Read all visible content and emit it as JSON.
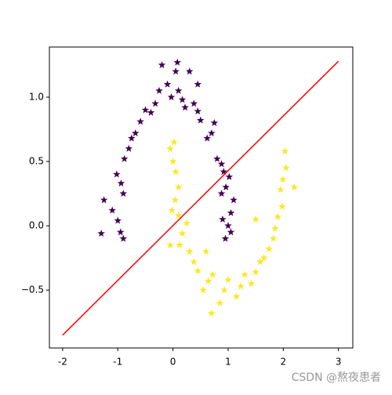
{
  "chart_data": {
    "type": "scatter",
    "xlim": [
      -2.24,
      3.26
    ],
    "ylim": [
      -0.95,
      1.39
    ],
    "xticks": [
      -2,
      -1,
      0,
      1,
      2,
      3
    ],
    "yticks": [
      {
        "value": -0.5,
        "label": "−0.5"
      },
      {
        "value": 0,
        "label": "0.0"
      },
      {
        "value": 0.5,
        "label": "0.5"
      },
      {
        "value": 1,
        "label": "1.0"
      }
    ],
    "series": [
      {
        "color": "#440154",
        "marker": "star",
        "x": [
          1.0,
          0.95,
          1.05,
          0.9,
          0.96,
          0.88,
          1.02,
          0.88,
          0.8,
          0.92,
          0.7,
          0.62,
          0.75,
          0.45,
          0.38,
          0.5,
          0.17,
          0.1,
          0.22,
          -0.03,
          0.05,
          -0.1,
          0.08,
          -0.32,
          -0.25,
          -0.4,
          -0.59,
          -0.5,
          -0.68,
          -0.8,
          -0.88,
          -0.75,
          -0.94,
          -1.02,
          -0.9,
          -1.0,
          -1.1,
          -0.95,
          -1.3,
          -1.25,
          -0.9,
          0.3,
          -0.2,
          0.45,
          1.1,
          1.05
        ],
        "y": [
          0.0,
          -0.1,
          0.1,
          0.05,
          0.3,
          0.25,
          0.38,
          0.48,
          0.52,
          0.42,
          0.72,
          0.68,
          0.8,
          0.89,
          0.95,
          0.82,
          0.98,
          1.05,
          0.92,
          1.0,
          1.2,
          1.1,
          1.27,
          0.95,
          1.05,
          0.88,
          0.81,
          0.9,
          0.72,
          0.6,
          0.52,
          0.68,
          0.33,
          0.4,
          0.25,
          0.04,
          0.12,
          -0.05,
          -0.06,
          0.2,
          -0.1,
          1.2,
          1.25,
          1.1,
          0.2,
          -0.05
        ]
      },
      {
        "color": "#fde725",
        "marker": "star",
        "x": [
          0,
          -0.05,
          0.05,
          0.02,
          0.04,
          0.1,
          -0.02,
          0.17,
          0.25,
          0.12,
          0.38,
          0.3,
          0.45,
          0.64,
          0.55,
          0.72,
          0.93,
          0.85,
          1.0,
          0.7,
          1.23,
          1.15,
          1.3,
          1.5,
          1.42,
          1.58,
          1.74,
          1.65,
          1.82,
          1.9,
          1.85,
          1.98,
          1.99,
          2.05,
          1.95,
          2.03,
          2.2,
          -0.05,
          0.6,
          1.5,
          0.1
        ],
        "y": [
          0.5,
          0.6,
          0.42,
          0.65,
          0.2,
          0.3,
          0.12,
          -0.06,
          0.02,
          -0.15,
          -0.28,
          -0.2,
          -0.35,
          -0.43,
          -0.5,
          -0.38,
          -0.5,
          -0.6,
          -0.42,
          -0.68,
          -0.47,
          -0.55,
          -0.38,
          -0.36,
          -0.45,
          -0.28,
          -0.18,
          -0.25,
          -0.1,
          0.07,
          -0.02,
          0.15,
          0.36,
          0.45,
          0.28,
          0.58,
          0.3,
          -0.15,
          -0.2,
          0.05,
          0.08
        ]
      }
    ],
    "line": {
      "color": "#ff0000",
      "x": [
        -2,
        3
      ],
      "y": [
        -0.85,
        1.28
      ]
    },
    "watermark": "CSDN @熬夜患者"
  }
}
